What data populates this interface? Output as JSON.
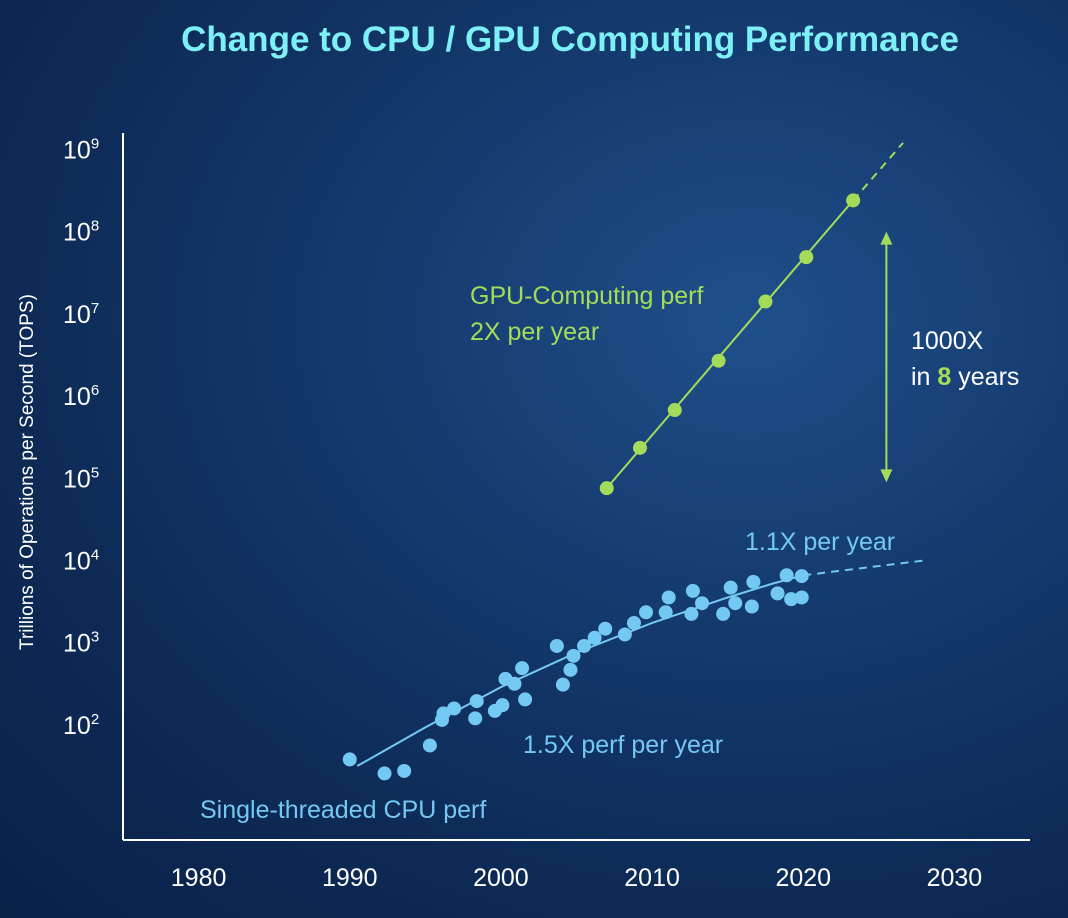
{
  "chart_data": {
    "type": "scatter",
    "title": "Change to CPU / GPU Computing Performance",
    "ylabel": "Trillions of Operations per Second (TOPS)",
    "xlabel": "",
    "yscale": "log",
    "xlim": [
      1975,
      2035
    ],
    "ylim_log10": [
      0.6,
      9.2
    ],
    "x_ticks": [
      "1980",
      "1990",
      "2000",
      "2010",
      "2020",
      "2030"
    ],
    "x_tick_values": [
      1980,
      1990,
      2000,
      2010,
      2020,
      2030
    ],
    "y_ticks": [
      {
        "base": "10",
        "exp": "2",
        "value": 2
      },
      {
        "base": "10",
        "exp": "3",
        "value": 3
      },
      {
        "base": "10",
        "exp": "4",
        "value": 4
      },
      {
        "base": "10",
        "exp": "5",
        "value": 5
      },
      {
        "base": "10",
        "exp": "6",
        "value": 6
      },
      {
        "base": "10",
        "exp": "7",
        "value": 7
      },
      {
        "base": "10",
        "exp": "8",
        "value": 8
      },
      {
        "base": "10",
        "exp": "9",
        "value": 9
      }
    ],
    "grid": false,
    "series": [
      {
        "name": "GPU-Computing perf",
        "color": "#a4dc5a",
        "trend": "2X per year",
        "points": [
          {
            "x": 2007,
            "log10_y": 4.88
          },
          {
            "x": 2009.2,
            "log10_y": 5.37
          },
          {
            "x": 2011.5,
            "log10_y": 5.83
          },
          {
            "x": 2014.4,
            "log10_y": 6.43
          },
          {
            "x": 2017.5,
            "log10_y": 7.15
          },
          {
            "x": 2020.2,
            "log10_y": 7.69
          },
          {
            "x": 2023.3,
            "log10_y": 8.38
          }
        ],
        "fit_line": [
          {
            "x": 2007,
            "log10_y": 4.88
          },
          {
            "x": 2023.3,
            "log10_y": 8.38
          }
        ],
        "projection": [
          {
            "x": 2023.3,
            "log10_y": 8.38
          },
          {
            "x": 2026.6,
            "log10_y": 9.08
          }
        ]
      },
      {
        "name": "Single-threaded CPU perf",
        "color": "#74c8f4",
        "trend": "1.5X perf per year",
        "points": [
          {
            "x": 1990,
            "log10_y": 1.58
          },
          {
            "x": 1992.3,
            "log10_y": 1.41
          },
          {
            "x": 1993.6,
            "log10_y": 1.44
          },
          {
            "x": 1995.3,
            "log10_y": 1.75
          },
          {
            "x": 1996.1,
            "log10_y": 2.06
          },
          {
            "x": 1996.2,
            "log10_y": 2.14
          },
          {
            "x": 1996.9,
            "log10_y": 2.2
          },
          {
            "x": 1998.3,
            "log10_y": 2.08
          },
          {
            "x": 1998.4,
            "log10_y": 2.29
          },
          {
            "x": 1999.6,
            "log10_y": 2.17
          },
          {
            "x": 2000.1,
            "log10_y": 2.24
          },
          {
            "x": 2000.3,
            "log10_y": 2.56
          },
          {
            "x": 2000.9,
            "log10_y": 2.5
          },
          {
            "x": 2001.4,
            "log10_y": 2.69
          },
          {
            "x": 2001.6,
            "log10_y": 2.31
          },
          {
            "x": 2003.7,
            "log10_y": 2.96
          },
          {
            "x": 2004.1,
            "log10_y": 2.49
          },
          {
            "x": 2004.6,
            "log10_y": 2.67
          },
          {
            "x": 2004.8,
            "log10_y": 2.84
          },
          {
            "x": 2005.5,
            "log10_y": 2.96
          },
          {
            "x": 2006.2,
            "log10_y": 3.06
          },
          {
            "x": 2006.9,
            "log10_y": 3.17
          },
          {
            "x": 2008.2,
            "log10_y": 3.1
          },
          {
            "x": 2008.8,
            "log10_y": 3.24
          },
          {
            "x": 2009.6,
            "log10_y": 3.37
          },
          {
            "x": 2010.9,
            "log10_y": 3.37
          },
          {
            "x": 2011.1,
            "log10_y": 3.55
          },
          {
            "x": 2012.6,
            "log10_y": 3.35
          },
          {
            "x": 2012.7,
            "log10_y": 3.63
          },
          {
            "x": 2013.3,
            "log10_y": 3.48
          },
          {
            "x": 2014.7,
            "log10_y": 3.35
          },
          {
            "x": 2015.2,
            "log10_y": 3.67
          },
          {
            "x": 2015.5,
            "log10_y": 3.48
          },
          {
            "x": 2016.6,
            "log10_y": 3.44
          },
          {
            "x": 2016.7,
            "log10_y": 3.74
          },
          {
            "x": 2018.3,
            "log10_y": 3.6
          },
          {
            "x": 2018.9,
            "log10_y": 3.82
          },
          {
            "x": 2019.2,
            "log10_y": 3.53
          },
          {
            "x": 2019.9,
            "log10_y": 3.55
          },
          {
            "x": 2019.9,
            "log10_y": 3.81
          }
        ],
        "fit_line": [
          {
            "x": 1990.5,
            "log10_y": 1.5
          },
          {
            "x": 1995,
            "log10_y": 1.97
          },
          {
            "x": 2000,
            "log10_y": 2.46
          },
          {
            "x": 2005,
            "log10_y": 2.88
          },
          {
            "x": 2010,
            "log10_y": 3.24
          },
          {
            "x": 2015,
            "log10_y": 3.55
          },
          {
            "x": 2018,
            "log10_y": 3.72
          },
          {
            "x": 2020,
            "log10_y": 3.82
          }
        ],
        "projection": [
          {
            "x": 2020,
            "log10_y": 3.82
          },
          {
            "x": 2028,
            "log10_y": 4.0
          }
        ]
      }
    ],
    "annotations": {
      "gpu_name": "GPU-Computing perf",
      "gpu_rate": "2X per year",
      "cpu_rate": "1.5X perf per year",
      "cpu_name": "Single-threaded CPU perf",
      "cpu_recent_rate": "1.1X per year",
      "gap_line1": "1000X",
      "gap_prefix": "in ",
      "gap_number": "8",
      "gap_suffix": " years",
      "gap_arrow_from_log10": 4.95,
      "gap_arrow_to_log10": 8.0,
      "gap_arrow_x": 2025.5
    },
    "colors": {
      "title": "#7df0f5",
      "gpu": "#a4dc5a",
      "cpu": "#74c8f4",
      "axis": "#ffffff"
    }
  }
}
